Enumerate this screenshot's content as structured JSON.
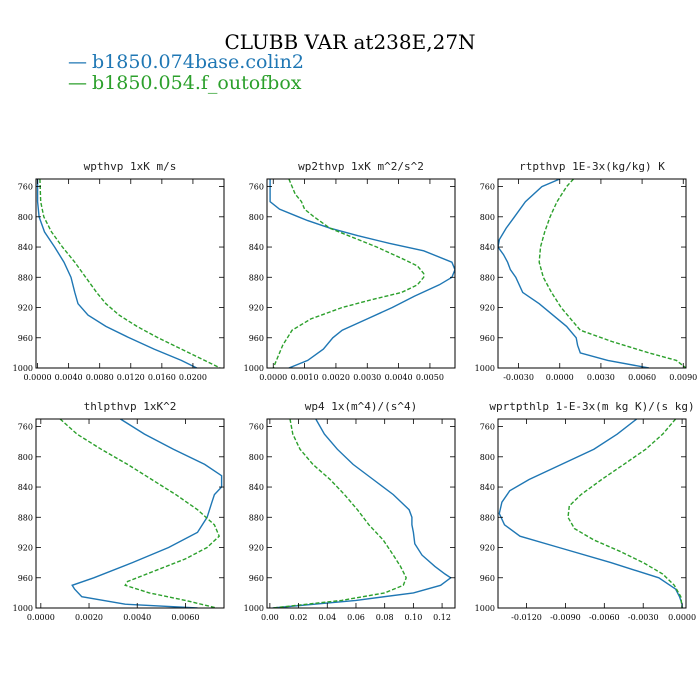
{
  "title": "CLUBB VAR at238E,27N",
  "colors": {
    "series1": "#1f77b4",
    "series2": "#2ca02c"
  },
  "legend": [
    {
      "marker": "—",
      "label": "b1850.074base.colin2",
      "color": "#1f77b4",
      "style": "solid"
    },
    {
      "marker": "—",
      "label": "b1850.054.f_outofbox",
      "color": "#2ca02c",
      "style": "dashed"
    }
  ],
  "chart_data": [
    {
      "type": "line",
      "title": "wpthvp  1xK m/s",
      "xlim": [
        -0.0002,
        0.024
      ],
      "ylim": [
        1000,
        750
      ],
      "xticks": [
        0.0,
        0.004,
        0.008,
        0.012,
        0.016,
        0.02
      ],
      "xtick_labels": [
        "0.0000",
        "0.0040",
        "0.0080",
        "0.0120",
        "0.0160",
        "0.0200"
      ],
      "yticks": [
        760,
        800,
        840,
        880,
        920,
        960,
        1000
      ],
      "ytick_labels": [
        "760",
        "800",
        "840",
        "880",
        "920",
        "960",
        "1000"
      ],
      "series": [
        {
          "name": "b1850.074base.colin2",
          "y": [
            750,
            780,
            800,
            820,
            840,
            860,
            880,
            900,
            915,
            930,
            945,
            960,
            975,
            990,
            1000
          ],
          "x": [
            0.0,
            0.0,
            0.0002,
            0.0009,
            0.0022,
            0.0034,
            0.0043,
            0.0048,
            0.0052,
            0.0065,
            0.0088,
            0.0118,
            0.015,
            0.0185,
            0.0205
          ]
        },
        {
          "name": "b1850.054.f_outofbox",
          "y": [
            750,
            780,
            800,
            820,
            840,
            860,
            880,
            900,
            915,
            930,
            945,
            960,
            975,
            990,
            1000
          ],
          "x": [
            0.0003,
            0.0004,
            0.0008,
            0.0018,
            0.0032,
            0.0048,
            0.0062,
            0.0076,
            0.0088,
            0.0105,
            0.0128,
            0.0155,
            0.0185,
            0.0215,
            0.0235
          ]
        }
      ]
    },
    {
      "type": "line",
      "title": "wp2thvp  1xK m^2/s^2",
      "xlim": [
        -0.0002,
        0.0058
      ],
      "ylim": [
        1000,
        750
      ],
      "xticks": [
        0.0,
        0.001,
        0.002,
        0.003,
        0.004,
        0.005
      ],
      "xtick_labels": [
        "0.0000",
        "0.0010",
        "0.0020",
        "0.0030",
        "0.0040",
        "0.0050"
      ],
      "yticks": [
        760,
        800,
        840,
        880,
        920,
        960,
        1000
      ],
      "ytick_labels": [
        "760",
        "800",
        "840",
        "880",
        "920",
        "960",
        "1000"
      ],
      "series": [
        {
          "name": "b1850.074base.colin2",
          "y": [
            750,
            760,
            770,
            780,
            790,
            800,
            805,
            815,
            825,
            835,
            845,
            860,
            870,
            880,
            890,
            905,
            920,
            935,
            950,
            960,
            975,
            990,
            1000
          ],
          "x": [
            -0.0001,
            -0.0001,
            -0.0001,
            -0.0001,
            0.0002,
            0.0008,
            0.0011,
            0.0018,
            0.0027,
            0.0037,
            0.0048,
            0.0057,
            0.0058,
            0.0057,
            0.0053,
            0.0045,
            0.0038,
            0.003,
            0.0022,
            0.0019,
            0.0016,
            0.0011,
            0.0005
          ]
        },
        {
          "name": "b1850.054.f_outofbox",
          "y": [
            750,
            760,
            770,
            780,
            790,
            800,
            815,
            825,
            840,
            855,
            865,
            875,
            880,
            890,
            900,
            910,
            920,
            935,
            950,
            970,
            990,
            1000
          ],
          "x": [
            0.0005,
            0.0006,
            0.0007,
            0.0009,
            0.001,
            0.0013,
            0.0018,
            0.0024,
            0.0033,
            0.0041,
            0.0046,
            0.0048,
            0.0048,
            0.0046,
            0.0041,
            0.0031,
            0.0022,
            0.0012,
            0.0006,
            0.0003,
            0.0001,
            0.0
          ]
        }
      ]
    },
    {
      "type": "line",
      "title": "rtpthvp  1E-3x(kg/kg) K",
      "xlim": [
        -0.0045,
        0.0092
      ],
      "ylim": [
        1000,
        750
      ],
      "xticks": [
        -0.003,
        0.0,
        0.003,
        0.006,
        0.009
      ],
      "xtick_labels": [
        "-0.0030",
        "0.0000",
        "0.0030",
        "0.0060",
        "0.0090"
      ],
      "yticks": [
        760,
        800,
        840,
        880,
        920,
        960,
        1000
      ],
      "ytick_labels": [
        "760",
        "800",
        "840",
        "880",
        "920",
        "960",
        "1000"
      ],
      "series": [
        {
          "name": "b1850.074base.colin2",
          "y": [
            750,
            760,
            780,
            800,
            815,
            830,
            840,
            850,
            860,
            870,
            880,
            900,
            915,
            930,
            945,
            960,
            970,
            980,
            990,
            1000
          ],
          "x": [
            0.0,
            -0.0013,
            -0.0025,
            -0.0033,
            -0.0039,
            -0.0044,
            -0.0045,
            -0.0041,
            -0.0038,
            -0.0036,
            -0.0032,
            -0.0027,
            -0.0015,
            -0.0005,
            0.0005,
            0.0012,
            0.0013,
            0.0015,
            0.0035,
            0.0065
          ]
        },
        {
          "name": "b1850.054.f_outofbox",
          "y": [
            750,
            760,
            780,
            800,
            820,
            840,
            860,
            880,
            900,
            920,
            935,
            950,
            965,
            980,
            990,
            1000
          ],
          "x": [
            0.001,
            0.0005,
            -0.0002,
            -0.0007,
            -0.0011,
            -0.0014,
            -0.0015,
            -0.0012,
            -0.0006,
            0.0001,
            0.0008,
            0.0015,
            0.0038,
            0.0065,
            0.0085,
            0.0092
          ]
        }
      ]
    },
    {
      "type": "line",
      "title": "thlpthvp  1xK^2",
      "xlim": [
        -0.0002,
        0.0076
      ],
      "ylim": [
        1000,
        750
      ],
      "xticks": [
        0.0,
        0.002,
        0.004,
        0.006
      ],
      "xtick_labels": [
        "0.0000",
        "0.0020",
        "0.0040",
        "0.0060"
      ],
      "yticks": [
        760,
        800,
        840,
        880,
        920,
        960,
        1000
      ],
      "ytick_labels": [
        "760",
        "800",
        "840",
        "880",
        "920",
        "960",
        "1000"
      ],
      "series": [
        {
          "name": "b1850.074base.colin2",
          "y": [
            750,
            770,
            790,
            810,
            825,
            840,
            850,
            860,
            880,
            900,
            920,
            940,
            960,
            970,
            975,
            985,
            995,
            1000
          ],
          "x": [
            0.0033,
            0.0043,
            0.0055,
            0.0068,
            0.0075,
            0.0075,
            0.0072,
            0.0071,
            0.0069,
            0.0065,
            0.0053,
            0.0038,
            0.0022,
            0.0013,
            0.0014,
            0.0017,
            0.0035,
            0.0065
          ]
        },
        {
          "name": "b1850.054.f_outofbox",
          "y": [
            750,
            770,
            790,
            810,
            830,
            850,
            870,
            890,
            905,
            920,
            935,
            950,
            965,
            970,
            980,
            990,
            1000
          ],
          "x": [
            0.0008,
            0.0015,
            0.0025,
            0.0036,
            0.0046,
            0.0056,
            0.0065,
            0.0072,
            0.0074,
            0.0069,
            0.006,
            0.0048,
            0.0036,
            0.0035,
            0.0045,
            0.006,
            0.0073
          ]
        }
      ]
    },
    {
      "type": "line",
      "title": "wp4  1x(m^4)/(s^4)",
      "xlim": [
        -0.002,
        0.129
      ],
      "ylim": [
        1000,
        750
      ],
      "xticks": [
        0.0,
        0.02,
        0.04,
        0.06,
        0.08,
        0.1,
        0.12
      ],
      "xtick_labels": [
        "0.00",
        "0.02",
        "0.04",
        "0.06",
        "0.08",
        "0.10",
        "0.12"
      ],
      "yticks": [
        760,
        800,
        840,
        880,
        920,
        960,
        1000
      ],
      "ytick_labels": [
        "760",
        "800",
        "840",
        "880",
        "920",
        "960",
        "1000"
      ],
      "series": [
        {
          "name": "b1850.074base.colin2",
          "y": [
            750,
            770,
            790,
            810,
            830,
            850,
            870,
            880,
            890,
            900,
            915,
            930,
            945,
            955,
            960,
            970,
            980,
            990,
            1000
          ],
          "x": [
            0.032,
            0.038,
            0.047,
            0.058,
            0.072,
            0.086,
            0.097,
            0.099,
            0.099,
            0.1,
            0.101,
            0.106,
            0.115,
            0.122,
            0.126,
            0.119,
            0.1,
            0.06,
            0.002
          ]
        },
        {
          "name": "b1850.054.f_outofbox",
          "y": [
            750,
            770,
            790,
            810,
            830,
            850,
            870,
            890,
            910,
            930,
            945,
            960,
            970,
            980,
            990,
            1000
          ],
          "x": [
            0.014,
            0.016,
            0.021,
            0.03,
            0.042,
            0.052,
            0.061,
            0.069,
            0.079,
            0.086,
            0.091,
            0.095,
            0.093,
            0.08,
            0.05,
            0.002
          ]
        }
      ]
    },
    {
      "type": "line",
      "title": "wprtpthlp  1-E-3x(m kg K)/(s kg)",
      "xlim": [
        -0.0142,
        0.0003
      ],
      "ylim": [
        1000,
        750
      ],
      "xticks": [
        -0.012,
        -0.009,
        -0.006,
        -0.003,
        0.0
      ],
      "xtick_labels": [
        "-0.0120",
        "-0.0090",
        "-0.0060",
        "-0.0030",
        "0.0000"
      ],
      "yticks": [
        760,
        800,
        840,
        880,
        920,
        960,
        1000
      ],
      "ytick_labels": [
        "760",
        "800",
        "840",
        "880",
        "920",
        "960",
        "1000"
      ],
      "series": [
        {
          "name": "b1850.074base.colin2",
          "y": [
            750,
            770,
            790,
            810,
            830,
            845,
            860,
            875,
            890,
            905,
            920,
            940,
            960,
            975,
            985,
            995,
            1000
          ],
          "x": [
            -0.0035,
            -0.005,
            -0.0068,
            -0.0093,
            -0.0118,
            -0.0133,
            -0.0139,
            -0.0141,
            -0.0137,
            -0.0125,
            -0.0095,
            -0.0055,
            -0.0018,
            -0.0005,
            -0.0002,
            0.0,
            0.0
          ]
        },
        {
          "name": "b1850.054.f_outofbox",
          "y": [
            750,
            770,
            790,
            810,
            830,
            850,
            865,
            880,
            895,
            910,
            925,
            940,
            955,
            970,
            985,
            1000
          ],
          "x": [
            -0.0005,
            -0.0015,
            -0.0028,
            -0.0045,
            -0.0062,
            -0.0078,
            -0.0087,
            -0.0088,
            -0.0083,
            -0.0068,
            -0.0048,
            -0.003,
            -0.0015,
            -0.0006,
            -0.0001,
            0.0
          ]
        }
      ]
    }
  ]
}
